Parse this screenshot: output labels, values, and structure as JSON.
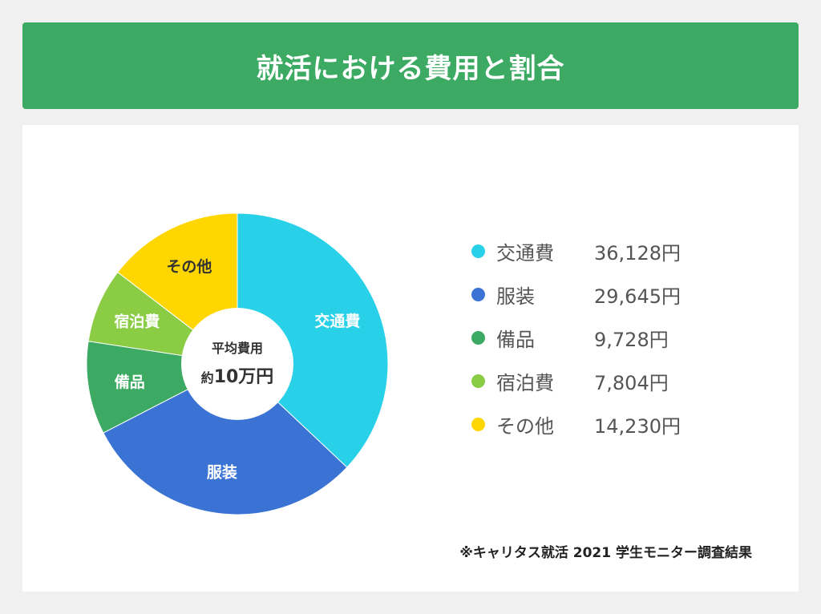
{
  "header": {
    "title": "就活における費用と割合"
  },
  "center": {
    "line1": "平均費用",
    "line2_prefix": "約",
    "line2_value": "10万円"
  },
  "chart_data": {
    "type": "pie",
    "categories": [
      "交通費",
      "服装",
      "備品",
      "宿泊費",
      "その他"
    ],
    "values": [
      36128,
      29645,
      9728,
      7804,
      14230
    ],
    "value_labels": [
      "36,128円",
      "29,645円",
      "9,728円",
      "7,804円",
      "14,230円"
    ],
    "unit": "円",
    "colors": [
      "#29d1e8",
      "#3b73d4",
      "#3caa63",
      "#8acc44",
      "#ffd600"
    ],
    "slice_label_colors": [
      "#ffffff",
      "#ffffff",
      "#ffffff",
      "#ffffff",
      "#333333"
    ],
    "donut": true,
    "legend_position": "right"
  },
  "legend": {
    "items": [
      {
        "name": "交通費",
        "value": "36,128円",
        "color": "#29d1e8"
      },
      {
        "name": "服装",
        "value": "29,645円",
        "color": "#3b73d4"
      },
      {
        "name": "備品",
        "value": "9,728円",
        "color": "#3caa63"
      },
      {
        "name": "宿泊費",
        "value": "7,804円",
        "color": "#8acc44"
      },
      {
        "name": "その他",
        "value": "14,230円",
        "color": "#ffd600"
      }
    ]
  },
  "source": {
    "text": "※キャリタス就活 2021 学生モニター調査結果"
  }
}
